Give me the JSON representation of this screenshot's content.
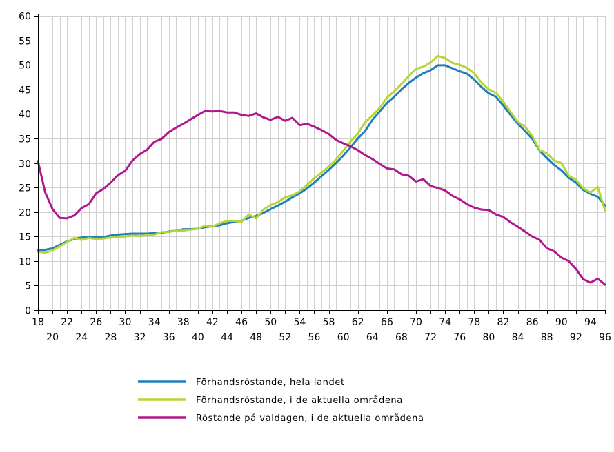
{
  "chart_data": {
    "type": "line",
    "title": "",
    "xlabel": "",
    "ylabel": "",
    "x": [
      18,
      19,
      20,
      21,
      22,
      23,
      24,
      25,
      26,
      27,
      28,
      29,
      30,
      31,
      32,
      33,
      34,
      35,
      36,
      37,
      38,
      39,
      40,
      41,
      42,
      43,
      44,
      45,
      46,
      47,
      48,
      49,
      50,
      51,
      52,
      53,
      54,
      55,
      56,
      57,
      58,
      59,
      60,
      61,
      62,
      63,
      64,
      65,
      66,
      67,
      68,
      69,
      70,
      71,
      72,
      73,
      74,
      75,
      76,
      77,
      78,
      79,
      80,
      81,
      82,
      83,
      84,
      85,
      86,
      87,
      88,
      89,
      90,
      91,
      92,
      93,
      94,
      95,
      96
    ],
    "xlim": [
      18,
      96
    ],
    "ylim": [
      0,
      60
    ],
    "y_ticks": [
      0,
      5,
      10,
      15,
      20,
      25,
      30,
      35,
      40,
      45,
      50,
      55,
      60
    ],
    "x_ticks_top": [
      "18",
      "22",
      "26",
      "30",
      "34",
      "38",
      "42",
      "46",
      "50",
      "54",
      "58",
      "62",
      "66",
      "70",
      "74",
      "78",
      "82",
      "86",
      "90",
      "94"
    ],
    "x_ticks_top_values": [
      18,
      22,
      26,
      30,
      34,
      38,
      42,
      46,
      50,
      54,
      58,
      62,
      66,
      70,
      74,
      78,
      82,
      86,
      90,
      94
    ],
    "x_ticks_bottom": [
      "20",
      "24",
      "28",
      "32",
      "36",
      "40",
      "44",
      "48",
      "52",
      "56",
      "60",
      "64",
      "68",
      "72",
      "76",
      "80",
      "84",
      "88",
      "92",
      "96"
    ],
    "x_ticks_bottom_values": [
      20,
      24,
      28,
      32,
      36,
      40,
      44,
      48,
      52,
      56,
      60,
      64,
      68,
      72,
      76,
      80,
      84,
      88,
      92,
      96
    ],
    "grid": true,
    "legend_position": "bottom-center",
    "series": [
      {
        "name": "Förhandsröstande, hela landet",
        "color": "#1f7fb8",
        "values": [
          12.2,
          12.3,
          12.6,
          13.3,
          14.0,
          14.5,
          14.8,
          14.9,
          15.0,
          14.9,
          15.2,
          15.4,
          15.5,
          15.6,
          15.6,
          15.6,
          15.7,
          15.8,
          16.0,
          16.2,
          16.5,
          16.5,
          16.6,
          16.9,
          17.1,
          17.3,
          17.7,
          18.0,
          18.2,
          18.8,
          19.2,
          19.8,
          20.6,
          21.3,
          22.1,
          23.0,
          23.8,
          24.8,
          26.0,
          27.3,
          28.6,
          30.0,
          31.5,
          33.2,
          35.0,
          36.5,
          38.8,
          40.5,
          42.2,
          43.5,
          45.0,
          46.3,
          47.4,
          48.3,
          48.9,
          49.9,
          49.9,
          49.3,
          48.7,
          48.2,
          47.0,
          45.5,
          44.2,
          43.5,
          41.7,
          39.8,
          38.0,
          36.5,
          34.9,
          32.5,
          31.0,
          29.6,
          28.5,
          27.0,
          26.0,
          24.5,
          23.7,
          23.1,
          21.3
        ]
      },
      {
        "name": "Förhandsröstande, i de aktuella områdena",
        "color": "#b5d535",
        "values": [
          11.9,
          11.7,
          12.2,
          13.0,
          13.9,
          14.7,
          14.3,
          14.7,
          14.5,
          14.6,
          14.8,
          14.9,
          15.0,
          15.2,
          15.1,
          15.3,
          15.4,
          15.9,
          15.9,
          16.2,
          16.2,
          16.4,
          16.6,
          17.2,
          17.0,
          17.7,
          18.2,
          18.2,
          18.0,
          19.5,
          18.7,
          20.5,
          21.4,
          22.0,
          23.0,
          23.4,
          24.2,
          25.5,
          26.9,
          28.0,
          29.3,
          30.7,
          32.5,
          34.4,
          36.0,
          38.3,
          39.7,
          41.2,
          43.3,
          44.6,
          46.1,
          47.7,
          49.2,
          49.6,
          50.5,
          51.8,
          51.4,
          50.4,
          50.0,
          49.4,
          48.3,
          46.4,
          45.0,
          44.3,
          42.5,
          40.4,
          38.4,
          37.4,
          35.5,
          32.6,
          32.0,
          30.5,
          30.0,
          27.4,
          26.6,
          24.8,
          24.0,
          25.1,
          20.3
        ]
      },
      {
        "name": "Röstande på valdagen, i de aktuella områdena",
        "color": "#b0178c",
        "values": [
          30.4,
          24.0,
          20.6,
          18.8,
          18.7,
          19.3,
          20.8,
          21.6,
          23.8,
          24.7,
          26.0,
          27.5,
          28.4,
          30.5,
          31.8,
          32.7,
          34.3,
          34.9,
          36.3,
          37.2,
          38.0,
          38.9,
          39.8,
          40.6,
          40.5,
          40.6,
          40.3,
          40.3,
          39.8,
          39.6,
          40.1,
          39.3,
          38.8,
          39.4,
          38.6,
          39.2,
          37.7,
          38.0,
          37.4,
          36.7,
          35.9,
          34.7,
          34.0,
          33.4,
          32.6,
          31.6,
          30.8,
          29.8,
          28.9,
          28.7,
          27.7,
          27.4,
          26.2,
          26.7,
          25.3,
          24.9,
          24.4,
          23.3,
          22.6,
          21.6,
          20.9,
          20.5,
          20.4,
          19.5,
          19.0,
          17.9,
          17.0,
          16.0,
          15.0,
          14.3,
          12.6,
          12.0,
          10.7,
          10.0,
          8.4,
          6.3,
          5.6,
          6.4,
          5.2
        ]
      }
    ]
  }
}
